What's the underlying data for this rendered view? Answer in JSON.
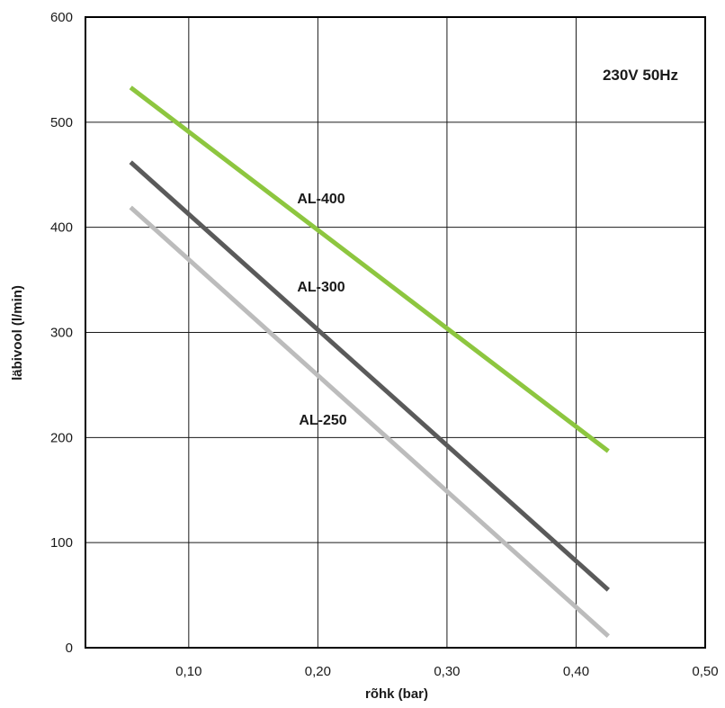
{
  "chart_data": {
    "type": "line",
    "title": "",
    "xlabel": "rõhk (bar)",
    "ylabel": "läbivool (l/min)",
    "annotation": "230V 50Hz",
    "xlim": [
      0.02,
      0.5
    ],
    "ylim": [
      0,
      600
    ],
    "x_ticks": [
      0.1,
      0.2,
      0.3,
      0.4,
      0.5
    ],
    "x_tick_labels": [
      "0,10",
      "0,20",
      "0,30",
      "0,40",
      "0,50"
    ],
    "y_ticks": [
      0,
      100,
      200,
      300,
      400,
      500,
      600
    ],
    "y_tick_labels": [
      "0",
      "100",
      "200",
      "300",
      "400",
      "500",
      "600"
    ],
    "grid": true,
    "series": [
      {
        "name": "AL-400",
        "color": "#8dc63f",
        "x": [
          0.055,
          0.425
        ],
        "y": [
          533,
          187
        ]
      },
      {
        "name": "AL-300",
        "color": "#5a5a5a",
        "x": [
          0.055,
          0.425
        ],
        "y": [
          462,
          55
        ]
      },
      {
        "name": "AL-250",
        "color": "#bcbcbc",
        "x": [
          0.055,
          0.425
        ],
        "y": [
          419,
          11
        ]
      }
    ]
  }
}
